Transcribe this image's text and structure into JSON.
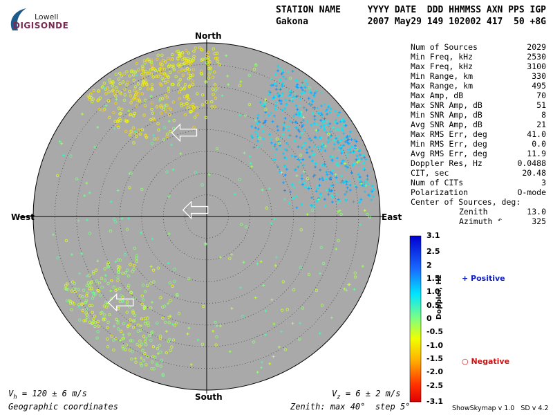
{
  "logo": {
    "line1": "Lowell",
    "line2": "DIGISONDE"
  },
  "header": {
    "station_label": "STATION NAME",
    "station_value": "Gakona",
    "fields_label": "YYYY DATE  DDD HHMMSS AXN PPS IGP",
    "fields_value": "2007 May29 149 102002 417  50 +8G"
  },
  "stats": [
    {
      "label": "Num of Sources",
      "value": "2029"
    },
    {
      "label": "Min Freq, kHz",
      "value": "2530"
    },
    {
      "label": "Max Freq, kHz",
      "value": "3100"
    },
    {
      "label": "Min Range, km",
      "value": "330"
    },
    {
      "label": "Max Range, km",
      "value": "495"
    },
    {
      "label": "Max Amp, dB",
      "value": "70"
    },
    {
      "label": "Max SNR Amp, dB",
      "value": "51"
    },
    {
      "label": "Min SNR Amp, dB",
      "value": "8"
    },
    {
      "label": "Avg SNR Amp, dB",
      "value": "21"
    },
    {
      "label": "Max RMS Err, deg",
      "value": "41.0"
    },
    {
      "label": "Min RMS Err, deg",
      "value": "0.0"
    },
    {
      "label": "Avg RMS Err, deg",
      "value": "11.9"
    },
    {
      "label": "Doppler Res, Hz",
      "value": "0.0488"
    },
    {
      "label": "CIT, sec",
      "value": "20.48"
    },
    {
      "label": "Num of CITs",
      "value": "3"
    },
    {
      "label": "Polarization",
      "value": "O-mode"
    }
  ],
  "center": {
    "label": "Center of Sources, deg:",
    "zenith_label": "Zenith",
    "zenith_value": "13.0",
    "azimuth_label": "Azimuth",
    "azimuth_value": "325"
  },
  "compass": {
    "north": "North",
    "south": "South",
    "east": "East",
    "west": "West"
  },
  "velocity": {
    "vh": "V",
    "vh_sub": "h",
    "vh_text": " = 120 ± 6 m/s",
    "vz": "V",
    "vz_sub": "z",
    "vz_text": " = 6 ± 2 m/s"
  },
  "bottom": {
    "coords": "Geographic coordinates",
    "zenith_note": "Zenith: max 40°  step 5°"
  },
  "colorbar": {
    "title": "Doppler, Hz",
    "ticks": [
      "3.1",
      "2.5",
      "2",
      "1.5",
      "1.0",
      "0.5",
      "0",
      "-0.5",
      "-1.0",
      "-1.5",
      "-2.0",
      "-2.5",
      "-3.1"
    ],
    "tick_values": [
      3.1,
      2.5,
      2,
      1.5,
      1.0,
      0.5,
      0,
      -0.5,
      -1.0,
      -1.5,
      -2.0,
      -2.5,
      -3.1
    ]
  },
  "legend": {
    "positive": "Positive",
    "negative": "Negative",
    "positive_color": "#1020c0",
    "negative_color": "#cc1010"
  },
  "footer": {
    "app": "ShowSkymap v 1.0   SD v 4.2"
  },
  "chart_data": {
    "type": "scatter",
    "projection": "polar-skymap",
    "zenith_max_deg": 40,
    "zenith_step_deg": 5,
    "doppler_range_hz": [
      -3.1,
      3.1
    ],
    "plot_background": "#a9a9a9",
    "clusters": [
      {
        "name": "Negative",
        "marker": "circle",
        "az_range": [
          -45,
          -5
        ],
        "zen_range": [
          20,
          39
        ],
        "doppler_range": [
          -1.3,
          -0.4
        ],
        "count": 300
      },
      {
        "name": "Negative",
        "marker": "circle",
        "az_range": [
          -10,
          5
        ],
        "zen_range": [
          22,
          39
        ],
        "doppler_range": [
          -1.2,
          -0.5
        ],
        "count": 70
      },
      {
        "name": "Negative",
        "marker": "circle",
        "az_range": [
          195,
          245
        ],
        "zen_range": [
          15,
          38
        ],
        "doppler_range": [
          -0.8,
          0.1
        ],
        "count": 250
      },
      {
        "name": "Positive",
        "marker": "plus",
        "az_range": [
          25,
          85
        ],
        "zen_range": [
          18,
          39
        ],
        "doppler_range": [
          0.6,
          1.6
        ],
        "count": 520
      },
      {
        "name": "Positive",
        "marker": "plus",
        "az_range": [
          0,
          360
        ],
        "zen_range": [
          5,
          38
        ],
        "doppler_range": [
          -0.5,
          0.5
        ],
        "count": 150
      },
      {
        "name": "Negative",
        "marker": "circle",
        "az_range": [
          0,
          360
        ],
        "zen_range": [
          5,
          38
        ],
        "doppler_range": [
          -0.6,
          0.3
        ],
        "count": 90
      }
    ],
    "arrows": [
      {
        "az": 300,
        "zen": 3
      },
      {
        "az": 345,
        "zen": 20
      },
      {
        "az": 225,
        "zen": 28
      }
    ]
  }
}
